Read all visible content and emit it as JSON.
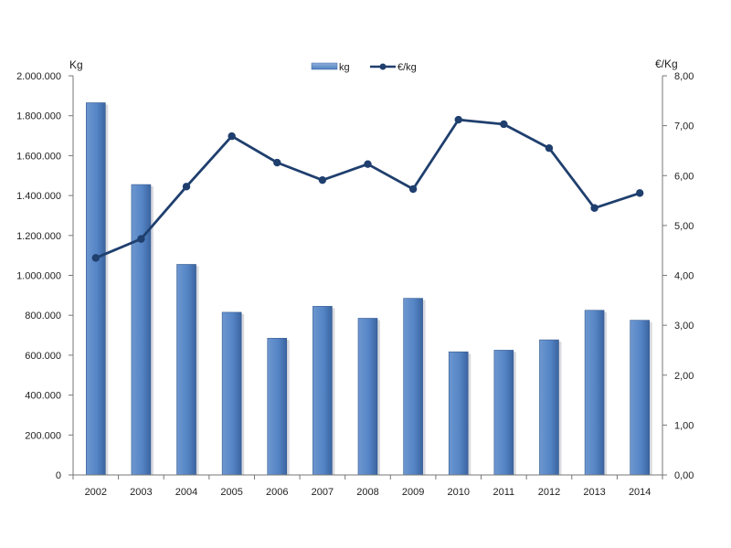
{
  "chart_data": {
    "type": "bar",
    "categories": [
      "2002",
      "2003",
      "2004",
      "2005",
      "2006",
      "2007",
      "2008",
      "2009",
      "2010",
      "2011",
      "2012",
      "2013",
      "2014"
    ],
    "series": [
      {
        "name": "kg",
        "type": "bar",
        "axis": "left",
        "color": "#4f81bd",
        "values": [
          1865000,
          1455000,
          1055000,
          815000,
          685000,
          845000,
          785000,
          885000,
          617000,
          625000,
          677000,
          825000,
          775000
        ]
      },
      {
        "name": "€/kg",
        "type": "line",
        "axis": "right",
        "color": "#1f3f6e",
        "values": [
          4.35,
          4.73,
          5.78,
          6.79,
          6.26,
          5.91,
          6.23,
          5.73,
          7.12,
          7.03,
          6.55,
          5.35,
          5.65
        ]
      }
    ],
    "y_left": {
      "label": "Kg",
      "range": [
        0,
        2000000
      ],
      "ticks": [
        0,
        200000,
        400000,
        600000,
        800000,
        1000000,
        1200000,
        1400000,
        1600000,
        1800000,
        2000000
      ],
      "tick_labels": [
        "0",
        "200.000",
        "400.000",
        "600.000",
        "800.000",
        "1.000.000",
        "1.200.000",
        "1.400.000",
        "1.600.000",
        "1.800.000",
        "2.000.000"
      ]
    },
    "y_right": {
      "label": "€/Kg",
      "range": [
        0,
        8
      ],
      "ticks": [
        0,
        1,
        2,
        3,
        4,
        5,
        6,
        7,
        8
      ],
      "tick_labels": [
        "0,00",
        "1,00",
        "2,00",
        "3,00",
        "4,00",
        "5,00",
        "6,00",
        "7,00",
        "8,00"
      ]
    },
    "grid": false,
    "legend": {
      "position": "top-center",
      "entries": [
        "kg",
        "€/kg"
      ]
    }
  }
}
